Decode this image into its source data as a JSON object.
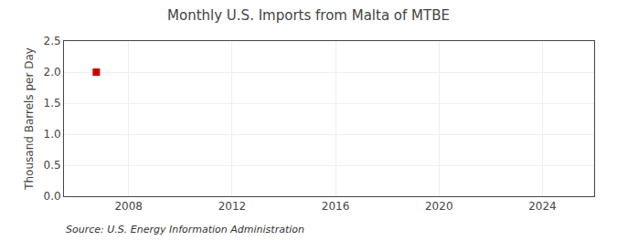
{
  "chart_data": {
    "type": "scatter",
    "title": "Monthly U.S. Imports from Malta of MTBE",
    "ylabel": "Thousand Barrels per Day",
    "annotation": "Source: U.S. Energy Information Administration",
    "x": [
      2006.75
    ],
    "values": [
      2.0
    ],
    "color": "#cc0000",
    "marker": "square",
    "xlim": [
      2005.5,
      2026.0
    ],
    "ylim": [
      0.0,
      2.5
    ],
    "xticks": [
      2008,
      2012,
      2016,
      2020,
      2024
    ],
    "yticks": [
      {
        "value": 0.0,
        "label": "0.0"
      },
      0.5,
      {
        "value": 1.0,
        "label": "1.0"
      },
      1.5,
      {
        "value": 2.0,
        "label": "2.0"
      },
      2.5
    ],
    "grid": true
  }
}
